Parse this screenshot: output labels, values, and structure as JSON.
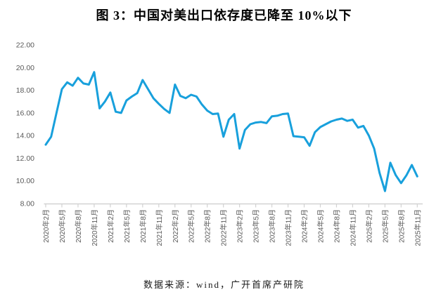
{
  "title": "图 3：中国对美出口依存度已降至 10%以下",
  "footer": "数据来源：wind，广开首席产研院",
  "chart_data": {
    "type": "line",
    "title": "图 3：中国对美出口依存度已降至 10%以下",
    "unit": "%",
    "x_start": "2020年2月",
    "x_end": "2025年11月",
    "x_frequency": "monthly",
    "points_per_tick": 3,
    "x_tick_labels": [
      "2020年2月",
      "2020年5月",
      "2020年8月",
      "2020年11月",
      "2021年2月",
      "2021年5月",
      "2021年8月",
      "2021年11月",
      "2022年2月",
      "2022年5月",
      "2022年8月",
      "2022年11月",
      "2023年2月",
      "2023年5月",
      "2023年8月",
      "2023年11月",
      "2024年2月",
      "2024年5月",
      "2024年8月",
      "2024年11月",
      "2025年2月",
      "2025年5月",
      "2025年8月",
      "2025年11月"
    ],
    "values": [
      13.2,
      13.9,
      16.0,
      18.1,
      18.7,
      18.4,
      19.1,
      18.6,
      18.5,
      19.6,
      16.4,
      17.0,
      17.8,
      16.1,
      16.0,
      17.1,
      17.45,
      17.75,
      18.9,
      18.1,
      17.3,
      16.8,
      16.35,
      16.0,
      18.5,
      17.5,
      17.3,
      17.6,
      17.45,
      16.75,
      16.2,
      15.9,
      15.95,
      13.9,
      15.4,
      15.9,
      12.85,
      14.5,
      15.0,
      15.15,
      15.2,
      15.1,
      15.7,
      15.75,
      15.9,
      15.95,
      13.95,
      13.9,
      13.85,
      13.1,
      14.3,
      14.75,
      15.0,
      15.25,
      15.4,
      15.5,
      15.3,
      15.4,
      14.7,
      14.85,
      14.0,
      12.85,
      10.7,
      9.1,
      11.6,
      10.5,
      9.8,
      10.5,
      11.4,
      10.4
    ],
    "ylim": [
      8,
      22
    ],
    "y_tick_labels": [
      "22.00",
      "20.00",
      "18.00",
      "16.00",
      "14.00",
      "12.00",
      "10.00",
      "8.00"
    ],
    "line_color": "#18a0dc",
    "axis_color": "#d2d2d2",
    "tick_text_color": "#595959",
    "grid": false,
    "legend": false
  }
}
